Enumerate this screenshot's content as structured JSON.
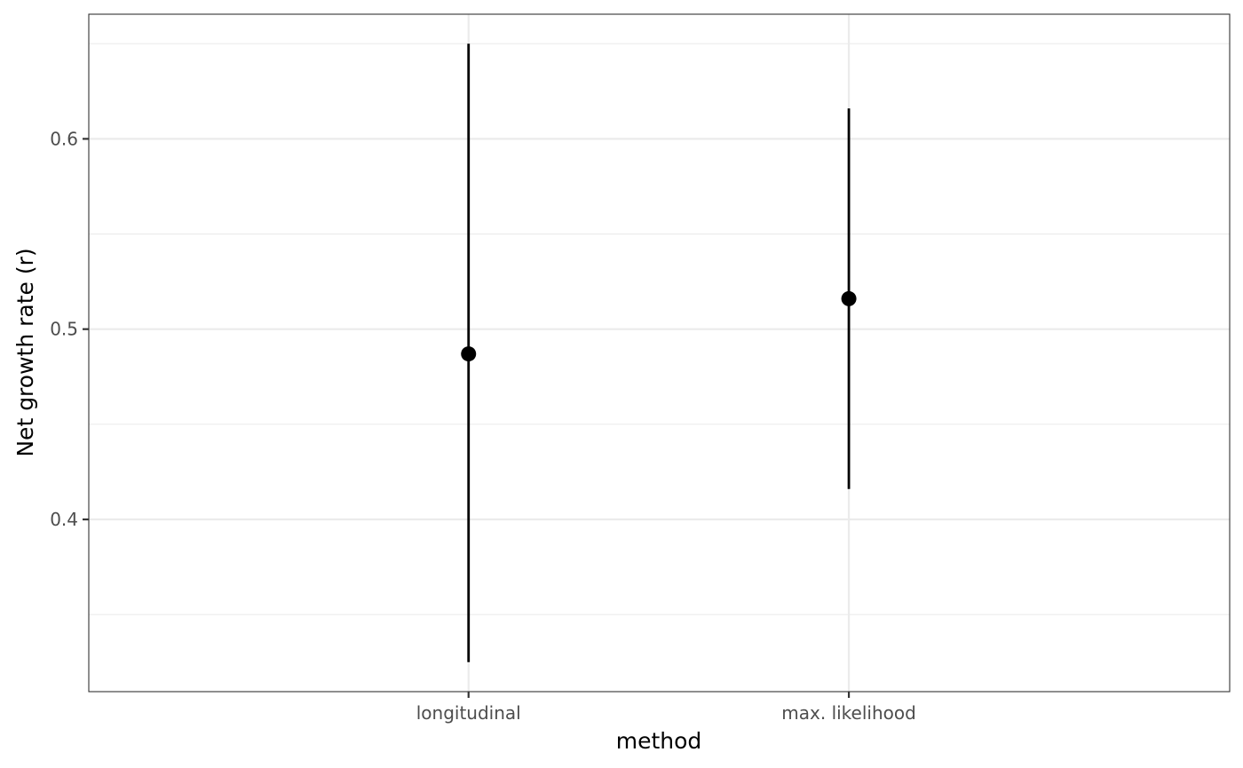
{
  "chart_data": {
    "type": "scatter",
    "subtype": "pointrange",
    "title": "",
    "xlabel": "method",
    "ylabel": "Net growth rate (r)",
    "categories": [
      "longitudinal",
      "max. likelihood"
    ],
    "points": [
      {
        "category": "longitudinal",
        "estimate": 0.487,
        "lower": 0.325,
        "upper": 0.65
      },
      {
        "category": "max. likelihood",
        "estimate": 0.516,
        "lower": 0.416,
        "upper": 0.616
      }
    ],
    "ylim": [
      0.3095,
      0.6655
    ],
    "y_major_ticks": [
      0.4,
      0.5,
      0.6
    ],
    "y_tick_labels": [
      "0.4",
      "0.5",
      "0.6"
    ],
    "y_minor_ticks": [
      0.35,
      0.45,
      0.55,
      0.65
    ],
    "grid": true,
    "legend": "none",
    "colors": {
      "marks": "#000000",
      "grid": "#ebebeb",
      "panel_border": "#333333",
      "tick_label": "#4d4d4d"
    }
  }
}
